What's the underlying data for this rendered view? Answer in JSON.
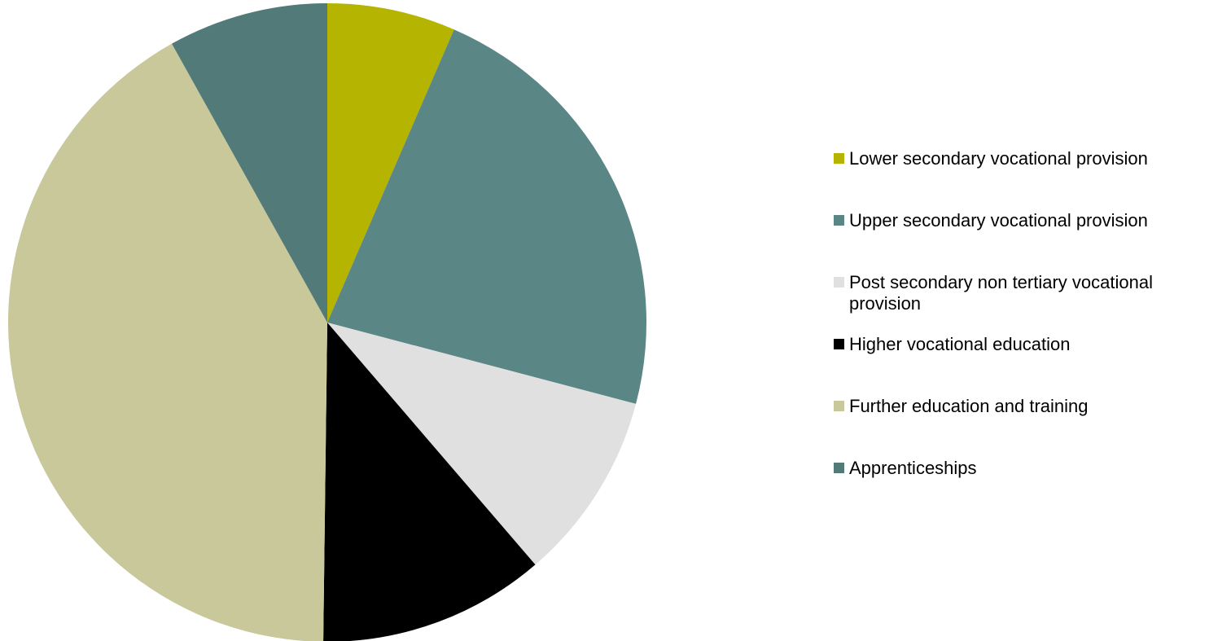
{
  "chart_data": {
    "type": "pie",
    "title": "",
    "start_angle_deg": 0,
    "direction": "clockwise",
    "legend_position": "right",
    "slices": [
      {
        "label": "Lower secondary vocational provision",
        "value": 6.5,
        "color": "#b5b400"
      },
      {
        "label": "Upper secondary vocational provision",
        "value": 22.6,
        "color": "#5b8686"
      },
      {
        "label": "Post secondary non tertiary vocational provision",
        "value": 9.6,
        "color": "#e0e0e0"
      },
      {
        "label": "Higher vocational education",
        "value": 11.5,
        "color": "#000000"
      },
      {
        "label": "Further education and training",
        "value": 41.7,
        "color": "#c8c89a"
      },
      {
        "label": "Apprenticeships",
        "value": 8.1,
        "color": "#517a79"
      }
    ]
  }
}
